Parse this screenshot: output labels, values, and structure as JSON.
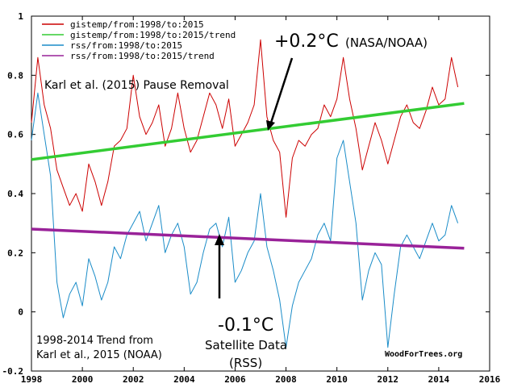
{
  "chart_data": {
    "type": "line",
    "title": "",
    "xlabel": "",
    "ylabel": "",
    "xlim": [
      1998,
      2016
    ],
    "ylim": [
      -0.2,
      1.0
    ],
    "x_ticks": [
      "1998",
      "2000",
      "2002",
      "2004",
      "2006",
      "2008",
      "2010",
      "2012",
      "2014",
      "2016"
    ],
    "y_ticks": [
      "-0.2",
      "0",
      "0.2",
      "0.4",
      "0.6",
      "0.8",
      "1"
    ],
    "grid": false,
    "legend_position": "top-left",
    "series": [
      {
        "name": "gistemp/from:1998/to:2015",
        "color": "#cc0000",
        "style": "line",
        "x": [
          1998.0,
          1998.25,
          1998.5,
          1998.75,
          1999.0,
          1999.25,
          1999.5,
          1999.75,
          2000.0,
          2000.25,
          2000.5,
          2000.75,
          2001.0,
          2001.25,
          2001.5,
          2001.75,
          2002.0,
          2002.25,
          2002.5,
          2002.75,
          2003.0,
          2003.25,
          2003.5,
          2003.75,
          2004.0,
          2004.25,
          2004.5,
          2004.75,
          2005.0,
          2005.25,
          2005.5,
          2005.75,
          2006.0,
          2006.25,
          2006.5,
          2006.75,
          2007.0,
          2007.25,
          2007.5,
          2007.75,
          2008.0,
          2008.25,
          2008.5,
          2008.75,
          2009.0,
          2009.25,
          2009.5,
          2009.75,
          2010.0,
          2010.25,
          2010.5,
          2010.75,
          2011.0,
          2011.25,
          2011.5,
          2011.75,
          2012.0,
          2012.25,
          2012.5,
          2012.75,
          2013.0,
          2013.25,
          2013.5,
          2013.75,
          2014.0,
          2014.25,
          2014.5,
          2014.75
        ],
        "y": [
          0.64,
          0.86,
          0.7,
          0.62,
          0.48,
          0.42,
          0.36,
          0.4,
          0.34,
          0.5,
          0.44,
          0.36,
          0.44,
          0.56,
          0.58,
          0.62,
          0.8,
          0.66,
          0.6,
          0.64,
          0.7,
          0.56,
          0.62,
          0.74,
          0.62,
          0.54,
          0.58,
          0.66,
          0.74,
          0.7,
          0.62,
          0.72,
          0.56,
          0.6,
          0.64,
          0.7,
          0.92,
          0.66,
          0.58,
          0.54,
          0.32,
          0.52,
          0.58,
          0.56,
          0.6,
          0.62,
          0.7,
          0.66,
          0.72,
          0.86,
          0.72,
          0.62,
          0.48,
          0.56,
          0.64,
          0.58,
          0.5,
          0.58,
          0.66,
          0.7,
          0.64,
          0.62,
          0.68,
          0.76,
          0.7,
          0.72,
          0.86,
          0.76
        ]
      },
      {
        "name": "gistemp/from:1998/to:2015/trend",
        "color": "#33cc33",
        "style": "trend",
        "x": [
          1998.0,
          2015.0
        ],
        "y": [
          0.515,
          0.705
        ]
      },
      {
        "name": "rss/from:1998/to:2015",
        "color": "#1a8cc8",
        "style": "line",
        "x": [
          1998.0,
          1998.25,
          1998.5,
          1998.75,
          1999.0,
          1999.25,
          1999.5,
          1999.75,
          2000.0,
          2000.25,
          2000.5,
          2000.75,
          2001.0,
          2001.25,
          2001.5,
          2001.75,
          2002.0,
          2002.25,
          2002.5,
          2002.75,
          2003.0,
          2003.25,
          2003.5,
          2003.75,
          2004.0,
          2004.25,
          2004.5,
          2004.75,
          2005.0,
          2005.25,
          2005.5,
          2005.75,
          2006.0,
          2006.25,
          2006.5,
          2006.75,
          2007.0,
          2007.25,
          2007.5,
          2007.75,
          2008.0,
          2008.25,
          2008.5,
          2008.75,
          2009.0,
          2009.25,
          2009.5,
          2009.75,
          2010.0,
          2010.25,
          2010.5,
          2010.75,
          2011.0,
          2011.25,
          2011.5,
          2011.75,
          2012.0,
          2012.25,
          2012.5,
          2012.75,
          2013.0,
          2013.25,
          2013.5,
          2013.75,
          2014.0,
          2014.25,
          2014.5,
          2014.75
        ],
        "y": [
          0.58,
          0.74,
          0.6,
          0.46,
          0.1,
          -0.02,
          0.06,
          0.1,
          0.02,
          0.18,
          0.12,
          0.04,
          0.1,
          0.22,
          0.18,
          0.26,
          0.3,
          0.34,
          0.24,
          0.3,
          0.36,
          0.2,
          0.26,
          0.3,
          0.22,
          0.06,
          0.1,
          0.2,
          0.28,
          0.3,
          0.22,
          0.32,
          0.1,
          0.14,
          0.2,
          0.24,
          0.4,
          0.22,
          0.14,
          0.04,
          -0.12,
          0.02,
          0.1,
          0.14,
          0.18,
          0.26,
          0.3,
          0.24,
          0.52,
          0.58,
          0.44,
          0.3,
          0.04,
          0.14,
          0.2,
          0.16,
          -0.12,
          0.06,
          0.22,
          0.26,
          0.22,
          0.18,
          0.24,
          0.3,
          0.24,
          0.26,
          0.36,
          0.3
        ]
      },
      {
        "name": "rss/from:1998/to:2015/trend",
        "color": "#992299",
        "style": "trend",
        "x": [
          1998.0,
          2015.0
        ],
        "y": [
          0.28,
          0.215
        ]
      }
    ],
    "annotations": {
      "karl_title": "Karl et al. (2015)  Pause Removal",
      "nasa_value": "+0.2°C",
      "nasa_label": "(NASA/NOAA)",
      "rss_value": "-0.1°C",
      "rss_label_line1": "Satellite Data",
      "rss_label_line2": "(RSS)",
      "trend_note_line1": "1998-2014 Trend from",
      "trend_note_line2": "Karl et al., 2015 (NOAA)",
      "watermark": "WoodForTrees.org"
    }
  }
}
